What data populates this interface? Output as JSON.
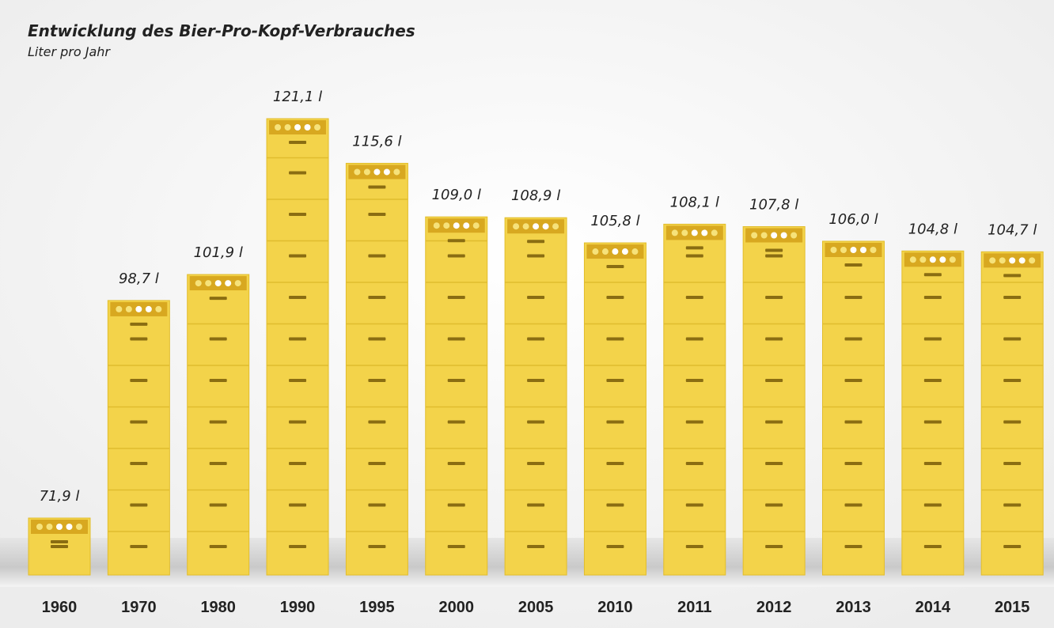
{
  "chart_data": {
    "type": "pictorial-bar",
    "title": "Entwicklung des Bier-Pro-Kopf-Verbrauches",
    "subtitle": "Liter pro Jahr",
    "categories": [
      "1960",
      "1970",
      "1980",
      "1990",
      "1995",
      "2000",
      "2005",
      "2010",
      "2011",
      "2012",
      "2013",
      "2014",
      "2015"
    ],
    "values": [
      71.9,
      98.7,
      101.9,
      121.1,
      115.6,
      109.0,
      108.9,
      105.8,
      108.1,
      107.8,
      106.0,
      104.8,
      104.7
    ],
    "value_labels": [
      "71,9 l",
      "98,7 l",
      "101,9 l",
      "121,1 l",
      "115,6 l",
      "109,0 l",
      "108,9 l",
      "105,8 l",
      "108,1 l",
      "107,8 l",
      "106,0 l",
      "104,8 l",
      "104,7 l"
    ],
    "color": "#f3d34a"
  }
}
